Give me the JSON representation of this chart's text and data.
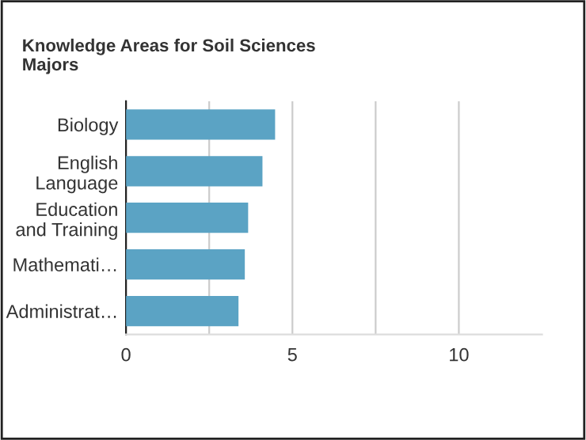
{
  "chart_data": {
    "type": "bar",
    "orientation": "horizontal",
    "title": "Knowledge Areas for Soil Sciences\nMajors",
    "categories": [
      "Biology",
      "English\nLanguage",
      "Education\nand Training",
      "Mathemati…",
      "Administrat…"
    ],
    "values": [
      4.48,
      4.1,
      3.67,
      3.57,
      3.38
    ],
    "color": "#5ba3c4",
    "xlim": [
      0,
      12.5
    ],
    "xticks": [
      0,
      {
        "value": 2.5,
        "label": null
      },
      5,
      {
        "value": 7.5,
        "label": null
      },
      10
    ],
    "grid": "x"
  }
}
